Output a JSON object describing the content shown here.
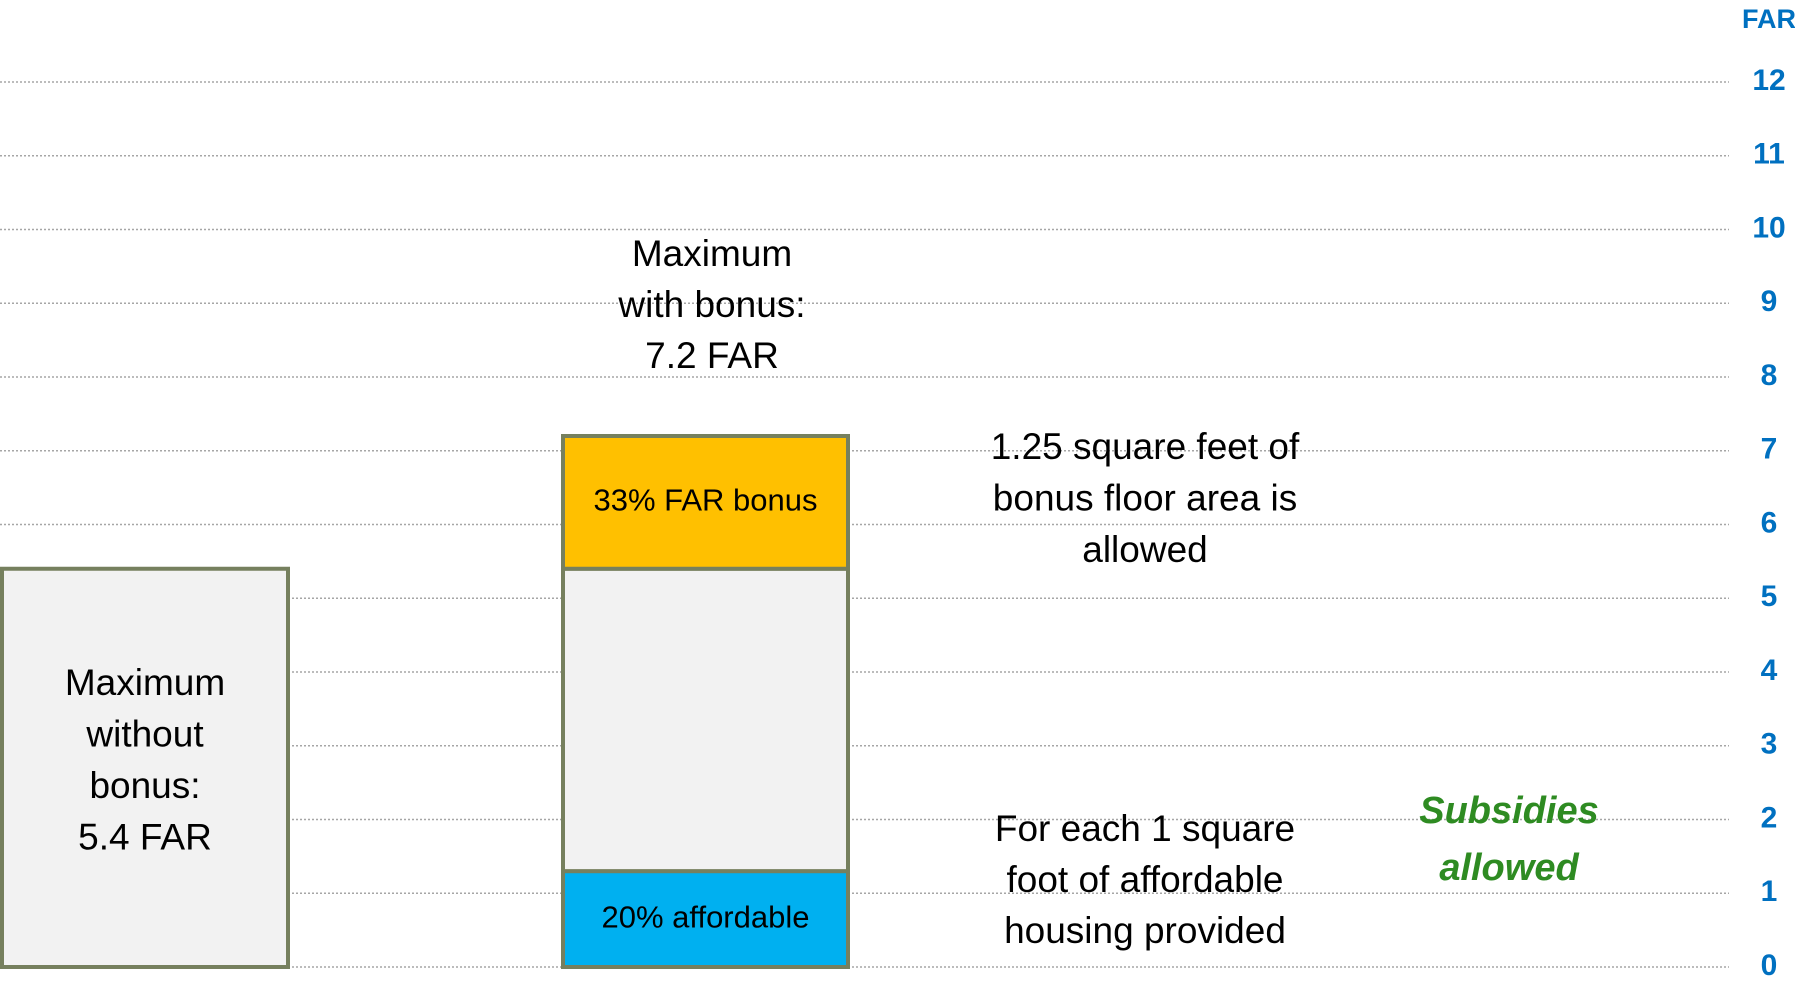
{
  "chart_data": {
    "type": "stacked_bar",
    "axis_title": "FAR",
    "ylim": [
      0,
      12
    ],
    "yticks": [
      0,
      1,
      2,
      3,
      4,
      5,
      6,
      7,
      8,
      9,
      10,
      11,
      12
    ],
    "grid": true,
    "tick_color": "#0070c0",
    "bars": [
      {
        "label": [
          "Maximum",
          "without",
          "bonus:",
          "5.4 FAR"
        ],
        "segments": [
          {
            "value": 5.4,
            "color": "#f2f2f2"
          }
        ]
      },
      {
        "label": [
          "Maximum",
          "with bonus:",
          "7.2 FAR"
        ],
        "segments": [
          {
            "value": 1.3,
            "color": "#00b0f0",
            "label": "20% affordable"
          },
          {
            "value": 4.1,
            "color": "#f2f2f2"
          },
          {
            "value": 1.8,
            "color": "#ffc000",
            "label": "33% FAR bonus"
          }
        ]
      }
    ],
    "annotations": [
      {
        "lines": [
          "1.25 square feet of",
          "bonus floor area is",
          "allowed"
        ]
      },
      {
        "lines": [
          "For each 1 square",
          "foot of affordable",
          "housing provided"
        ]
      },
      {
        "lines": [
          "Subsidies",
          "allowed"
        ],
        "color": "#2e8b22"
      }
    ]
  }
}
